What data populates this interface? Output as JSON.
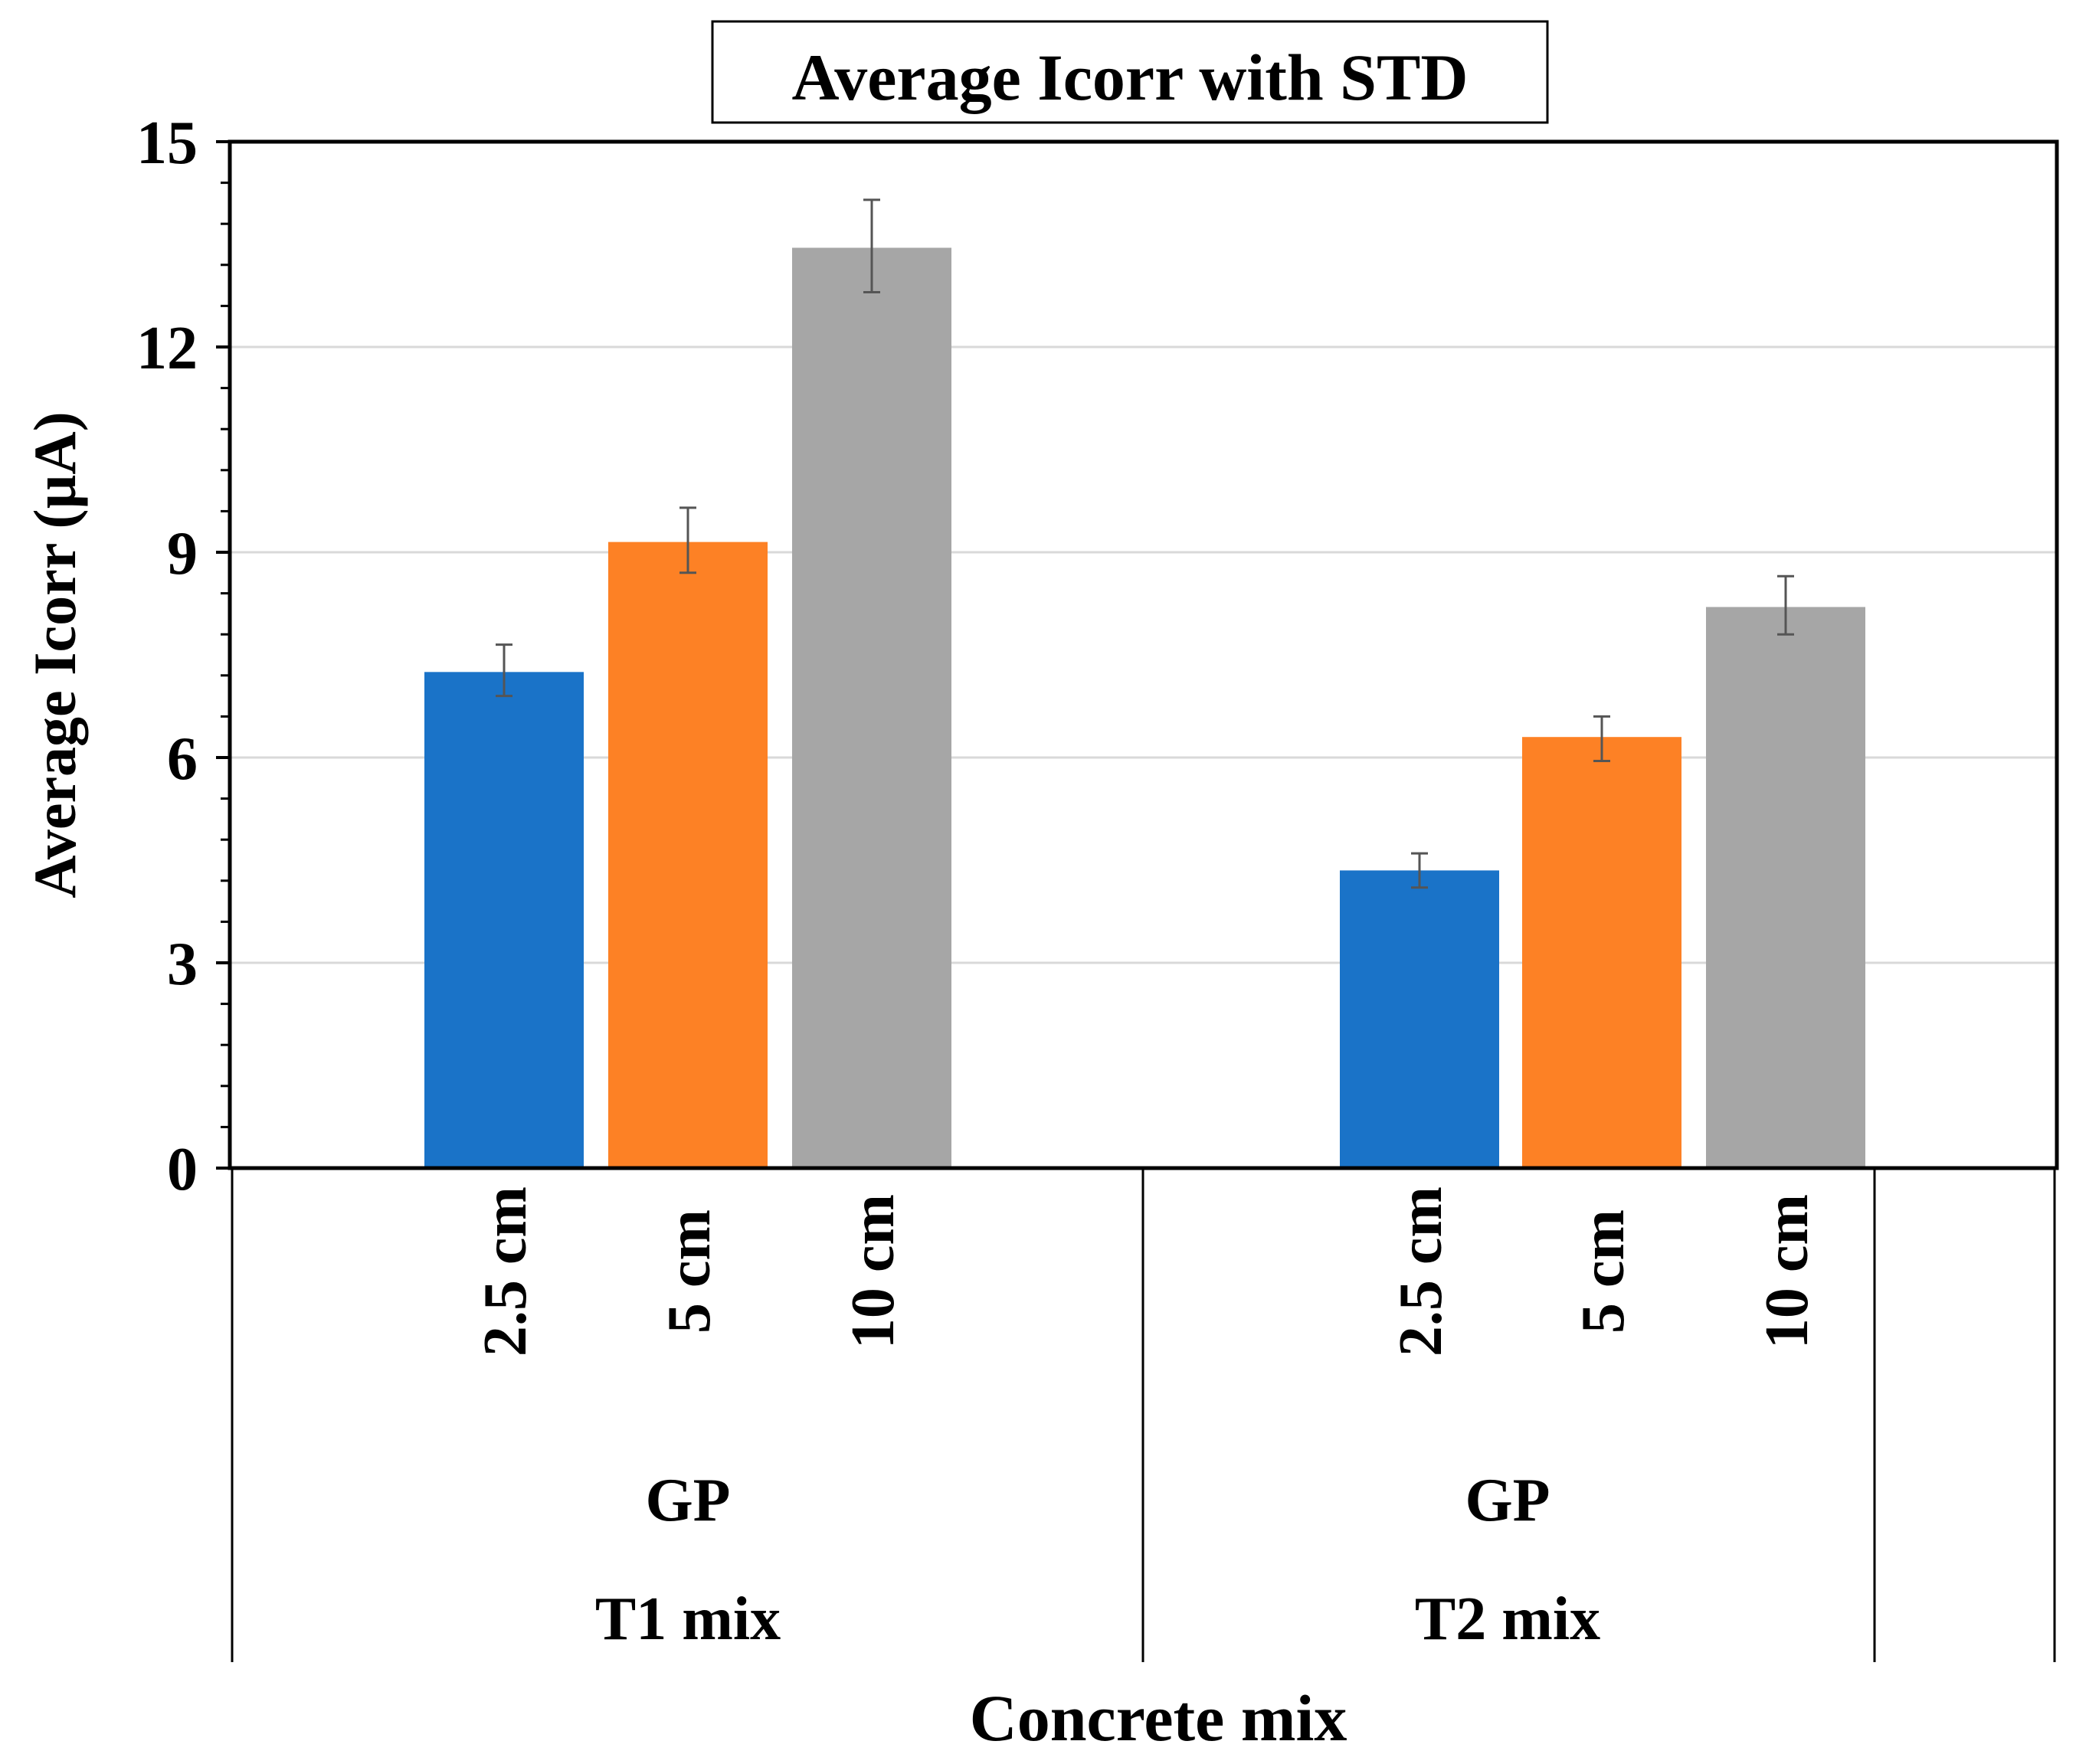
{
  "chart_data": {
    "type": "bar",
    "title": "Average Icorr with STD",
    "xlabel": "Concrete mix",
    "ylabel": "Average Icorr (µA)",
    "ylim": [
      0,
      15
    ],
    "yticks": [
      0,
      3,
      6,
      9,
      12,
      15
    ],
    "grid": true,
    "groups": [
      {
        "label": "T1 mix",
        "sublabel": "GP",
        "bars": [
          {
            "category": "2.5 cm",
            "value": 7.25,
            "err_low": 6.9,
            "err_high": 7.65,
            "color": "#1a73c8"
          },
          {
            "category": "5 cm",
            "value": 9.15,
            "err_low": 8.7,
            "err_high": 9.65,
            "color": "#fd8125"
          },
          {
            "category": "10 cm",
            "value": 13.45,
            "err_low": 12.8,
            "err_high": 14.15,
            "color": "#a6a6a6"
          }
        ]
      },
      {
        "label": "T2 mix",
        "sublabel": "GP",
        "bars": [
          {
            "category": "2.5 cm",
            "value": 4.35,
            "err_low": 4.1,
            "err_high": 4.6,
            "color": "#1a73c8"
          },
          {
            "category": "5 cm",
            "value": 6.3,
            "err_low": 5.95,
            "err_high": 6.6,
            "color": "#fd8125"
          },
          {
            "category": "10 cm",
            "value": 8.2,
            "err_low": 7.8,
            "err_high": 8.65,
            "color": "#a6a6a6"
          }
        ]
      }
    ]
  }
}
